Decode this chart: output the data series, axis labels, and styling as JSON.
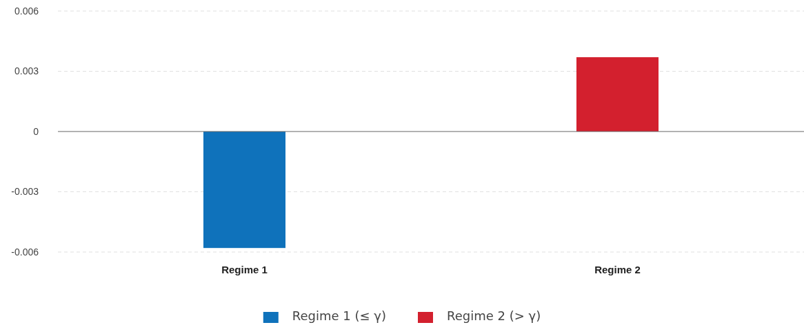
{
  "chart_data": {
    "type": "bar",
    "categories": [
      "Regime 1",
      "Regime 2"
    ],
    "series": [
      {
        "name": "Regime 1 (≤ γ)",
        "color": "#0f72bb",
        "values": [
          -0.0058,
          null
        ]
      },
      {
        "name": "Regime 2 (> γ)",
        "color": "#d3202e",
        "values": [
          null,
          0.0037
        ]
      }
    ],
    "ylim": [
      -0.006,
      0.006
    ],
    "yticks": [
      -0.006,
      -0.003,
      0,
      0.003,
      0.006
    ],
    "grid": "y",
    "legend": "bottom"
  }
}
